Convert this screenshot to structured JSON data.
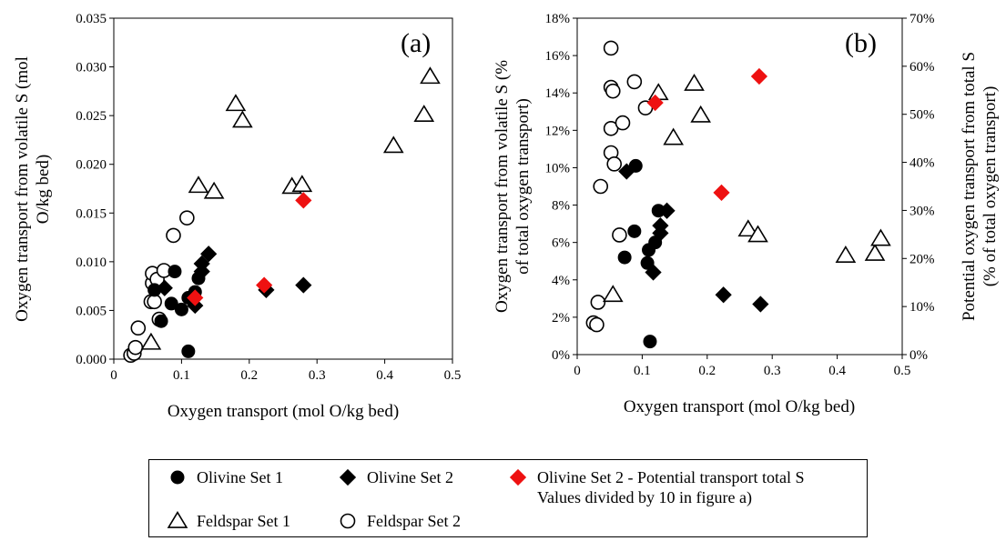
{
  "chart_data": [
    {
      "type": "scatter",
      "panel_label": "(a)",
      "xlabel": "Oxygen transport (mol O/kg bed)",
      "ylabel": [
        "Oxygen transport from volatile S (mol",
        "O/kg bed)"
      ],
      "xlim": [
        0,
        0.5
      ],
      "ylim": [
        0,
        0.035
      ],
      "xticks": [
        "0",
        "0.1",
        "0.2",
        "0.3",
        "0.4",
        "0.5"
      ],
      "yticks": [
        "0.000",
        "0.005",
        "0.010",
        "0.015",
        "0.020",
        "0.025",
        "0.030",
        "0.035"
      ],
      "grid": false,
      "series": [
        {
          "name": "Olivine Set 1",
          "marker": "circle",
          "color": "#000000",
          "points": [
            [
              0.09,
              0.009
            ],
            [
              0.085,
              0.0057
            ],
            [
              0.07,
              0.0039
            ],
            [
              0.1,
              0.0051
            ],
            [
              0.11,
              0.0063
            ],
            [
              0.12,
              0.0069
            ],
            [
              0.125,
              0.0083
            ],
            [
              0.11,
              0.0008
            ],
            [
              0.06,
              0.0071
            ]
          ]
        },
        {
          "name": "Olivine Set 2",
          "marker": "diamond",
          "color": "#000000",
          "points": [
            [
              0.075,
              0.0073
            ],
            [
              0.12,
              0.0055
            ],
            [
              0.13,
              0.009
            ],
            [
              0.13,
              0.0098
            ],
            [
              0.14,
              0.0108
            ],
            [
              0.225,
              0.0071
            ],
            [
              0.28,
              0.0076
            ]
          ]
        },
        {
          "name": "Olivine Set 2 - Potential transport total S",
          "marker": "diamond",
          "color": "#ee1111",
          "points": [
            [
              0.12,
              0.0063
            ],
            [
              0.222,
              0.0076
            ],
            [
              0.28,
              0.0163
            ]
          ]
        },
        {
          "name": "Feldspar Set 1",
          "marker": "triangle",
          "color": "#000000",
          "points": [
            [
              0.055,
              0.0017
            ],
            [
              0.125,
              0.0178
            ],
            [
              0.148,
              0.0172
            ],
            [
              0.18,
              0.0262
            ],
            [
              0.19,
              0.0245
            ],
            [
              0.263,
              0.0177
            ],
            [
              0.278,
              0.0179
            ],
            [
              0.413,
              0.0219
            ],
            [
              0.458,
              0.0251
            ],
            [
              0.467,
              0.029
            ]
          ]
        },
        {
          "name": "Feldspar Set 2",
          "marker": "circle-open",
          "color": "#000000",
          "points": [
            [
              0.025,
              0.0004
            ],
            [
              0.03,
              0.0006
            ],
            [
              0.032,
              0.0012
            ],
            [
              0.036,
              0.0032
            ],
            [
              0.055,
              0.0059
            ],
            [
              0.057,
              0.0078
            ],
            [
              0.057,
              0.0088
            ],
            [
              0.06,
              0.0059
            ],
            [
              0.064,
              0.0082
            ],
            [
              0.067,
              0.0041
            ],
            [
              0.074,
              0.0091
            ],
            [
              0.088,
              0.0127
            ],
            [
              0.108,
              0.0145
            ]
          ]
        }
      ]
    },
    {
      "type": "scatter",
      "panel_label": "(b)",
      "xlabel": "Oxygen transport (mol O/kg bed)",
      "ylabel": [
        "Oxygen transport from volatile S (%",
        "of total oxygen transport)"
      ],
      "y2label": [
        "Potential oxygen transport from total S",
        "(% of total oxygen transport)"
      ],
      "xlim": [
        0,
        0.5
      ],
      "ylim": [
        0,
        18
      ],
      "y2lim": [
        0,
        70
      ],
      "xticks": [
        "0",
        "0.1",
        "0.2",
        "0.3",
        "0.4",
        "0.5"
      ],
      "yticks": [
        "0%",
        "2%",
        "4%",
        "6%",
        "8%",
        "10%",
        "12%",
        "14%",
        "16%",
        "18%"
      ],
      "y2ticks": [
        "0%",
        "10%",
        "20%",
        "30%",
        "40%",
        "50%",
        "60%",
        "70%"
      ],
      "grid": false,
      "series": [
        {
          "name": "Olivine Set 1",
          "axis": "left",
          "marker": "circle",
          "color": "#000000",
          "points": [
            [
              0.09,
              10.1
            ],
            [
              0.088,
              6.6
            ],
            [
              0.073,
              5.2
            ],
            [
              0.11,
              5.6
            ],
            [
              0.108,
              4.9
            ],
            [
              0.12,
              6.0
            ],
            [
              0.125,
              7.7
            ],
            [
              0.112,
              0.7
            ]
          ]
        },
        {
          "name": "Olivine Set 2",
          "axis": "left",
          "marker": "diamond",
          "color": "#000000",
          "points": [
            [
              0.076,
              9.8
            ],
            [
              0.117,
              4.4
            ],
            [
              0.128,
              6.5
            ],
            [
              0.128,
              6.9
            ],
            [
              0.138,
              7.7
            ],
            [
              0.225,
              3.2
            ],
            [
              0.282,
              2.7
            ]
          ]
        },
        {
          "name": "Olivine Set 2 - Potential transport total S",
          "axis": "right",
          "marker": "diamond",
          "color": "#ee1111",
          "points": [
            [
              0.12,
              52.4
            ],
            [
              0.222,
              33.7
            ],
            [
              0.28,
              57.9
            ]
          ]
        },
        {
          "name": "Feldspar Set 1",
          "axis": "left",
          "marker": "triangle",
          "color": "#000000",
          "points": [
            [
              0.055,
              3.2
            ],
            [
              0.125,
              14.0
            ],
            [
              0.148,
              11.6
            ],
            [
              0.18,
              14.5
            ],
            [
              0.19,
              12.8
            ],
            [
              0.263,
              6.7
            ],
            [
              0.278,
              6.4
            ],
            [
              0.413,
              5.3
            ],
            [
              0.458,
              5.4
            ],
            [
              0.467,
              6.2
            ]
          ]
        },
        {
          "name": "Feldspar Set 2",
          "axis": "left",
          "marker": "circle-open",
          "color": "#000000",
          "points": [
            [
              0.025,
              1.7
            ],
            [
              0.03,
              1.6
            ],
            [
              0.032,
              2.8
            ],
            [
              0.036,
              9.0
            ],
            [
              0.052,
              16.4
            ],
            [
              0.052,
              14.3
            ],
            [
              0.055,
              14.1
            ],
            [
              0.052,
              12.1
            ],
            [
              0.052,
              10.8
            ],
            [
              0.057,
              10.2
            ],
            [
              0.065,
              6.4
            ],
            [
              0.07,
              12.4
            ],
            [
              0.088,
              14.6
            ],
            [
              0.105,
              13.2
            ]
          ]
        }
      ]
    }
  ],
  "legend": [
    {
      "label": "Olivine Set 1",
      "marker": "circle",
      "color": "#000000"
    },
    {
      "label": "Olivine Set 2",
      "marker": "diamond",
      "color": "#000000"
    },
    {
      "label": "Olivine Set 2 - Potential transport total S",
      "sublabel": "Values divided by 10 in figure a)",
      "marker": "diamond",
      "color": "#ee1111"
    },
    {
      "label": "Feldspar Set 1",
      "marker": "triangle",
      "color": "#000000"
    },
    {
      "label": "Feldspar Set 2",
      "marker": "circle-open",
      "color": "#000000"
    }
  ]
}
